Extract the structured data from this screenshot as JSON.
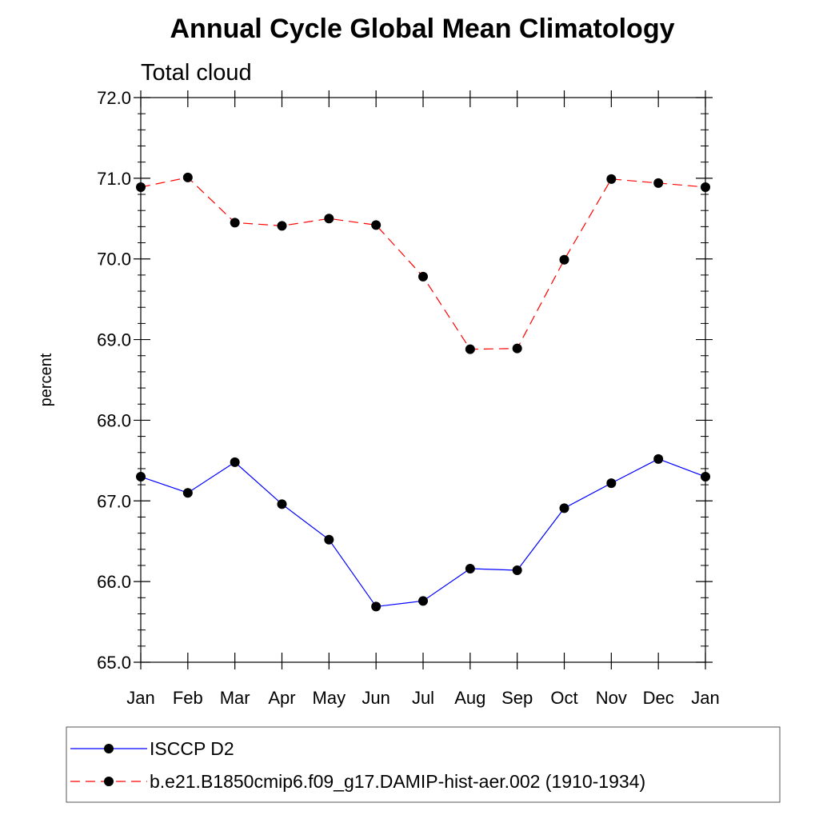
{
  "chart_data": {
    "type": "line",
    "title": "Annual Cycle Global Mean Climatology",
    "subtitle": "Total cloud",
    "ylabel": "percent",
    "xlabel": "",
    "categories": [
      "Jan",
      "Feb",
      "Mar",
      "Apr",
      "May",
      "Jun",
      "Jul",
      "Aug",
      "Sep",
      "Oct",
      "Nov",
      "Dec",
      "Jan"
    ],
    "ylim": [
      65.0,
      72.0
    ],
    "yticks": [
      "65.0",
      "66.0",
      "67.0",
      "68.0",
      "69.0",
      "70.0",
      "71.0",
      "72.0"
    ],
    "grid": false,
    "legend_position": "bottom",
    "series": [
      {
        "name": "ISCCP D2",
        "color": "#0000ff",
        "line_style": "solid",
        "marker": "filled-circle",
        "values": [
          67.3,
          67.1,
          67.48,
          66.96,
          66.52,
          65.69,
          65.76,
          66.16,
          66.14,
          66.91,
          67.22,
          67.52,
          67.3
        ]
      },
      {
        "name": "b.e21.B1850cmip6.f09_g17.DAMIP-hist-aer.002 (1910-1934)",
        "color": "#ff0000",
        "line_style": "dashed",
        "marker": "filled-circle",
        "values": [
          70.89,
          71.01,
          70.45,
          70.41,
          70.5,
          70.42,
          69.78,
          68.88,
          68.89,
          69.99,
          70.99,
          70.94,
          70.89
        ]
      }
    ]
  }
}
